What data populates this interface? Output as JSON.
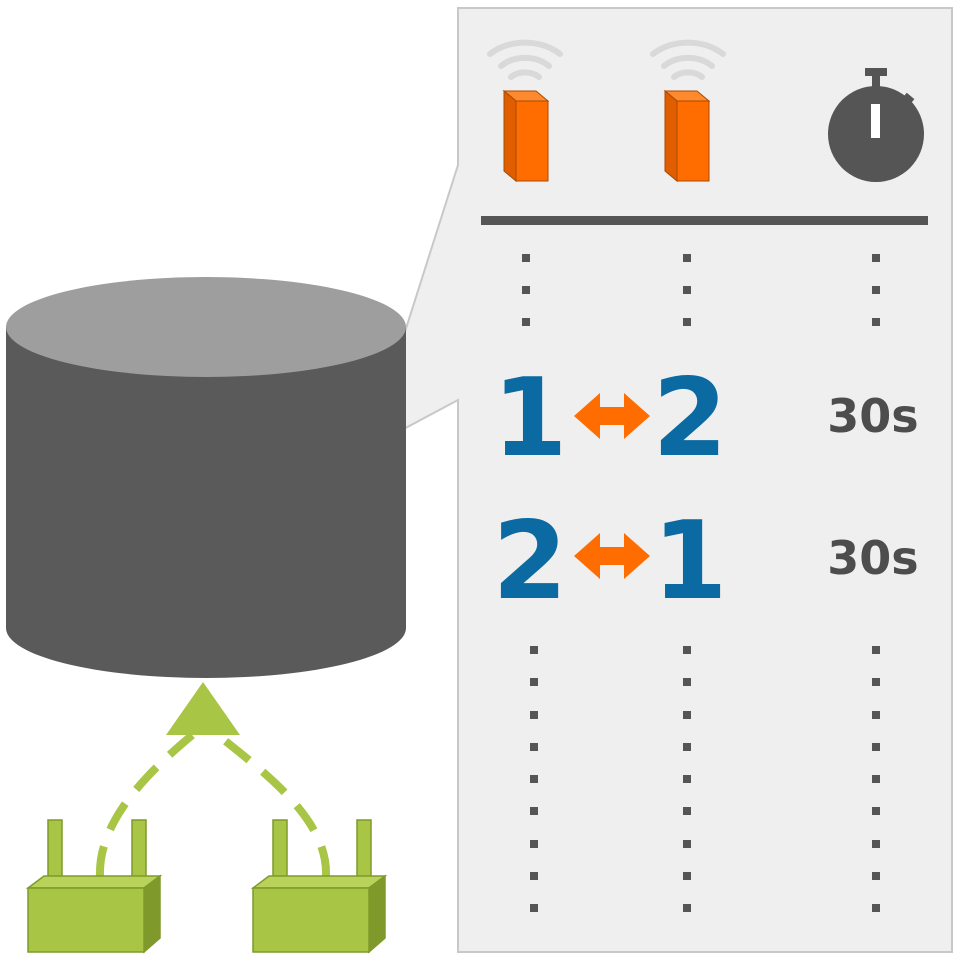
{
  "colors": {
    "panel_bg": "#efefef",
    "panel_border": "#c8c8c8",
    "cylinder_top": "#9e9e9e",
    "cylinder_body": "#5a5a5a",
    "router_green": "#a9c545",
    "router_green_dark": "#7f9a2a",
    "beacon_orange": "#ff6d00",
    "beacon_orange_dark": "#c75300",
    "number_blue": "#0a6aa1",
    "arrow_orange": "#ff6d00",
    "text_gray": "#4d4d4d"
  },
  "icons": {
    "database": "database-cylinder-icon",
    "gateway": "gateway-router-icon",
    "beacon": "wireless-beacon-icon",
    "timer": "stopwatch-icon",
    "swap": "double-headed-arrow-icon"
  },
  "table": {
    "rows": [
      {
        "from": "1",
        "to": "2",
        "duration": "30s"
      },
      {
        "from": "2",
        "to": "1",
        "duration": "30s"
      }
    ]
  }
}
